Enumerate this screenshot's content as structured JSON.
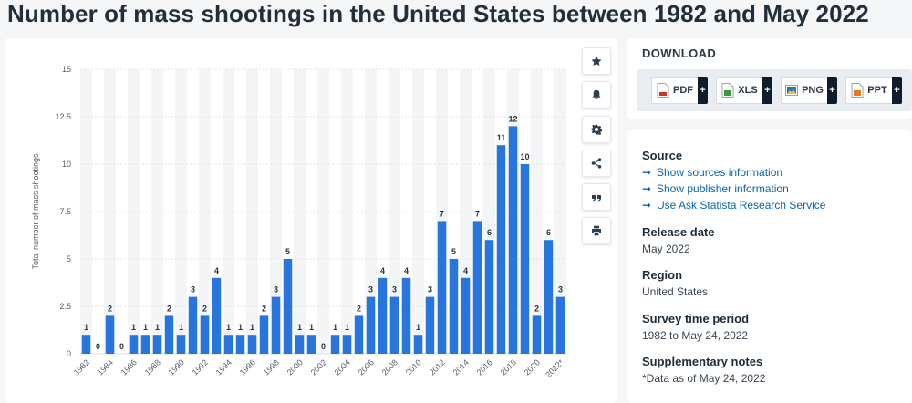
{
  "page": {
    "title": "Number of mass shootings in the United States between 1982 and May 2022"
  },
  "toolbar": {
    "buttons": [
      {
        "name": "star-icon"
      },
      {
        "name": "bell-icon"
      },
      {
        "name": "gear-icon"
      },
      {
        "name": "share-icon"
      },
      {
        "name": "quote-icon"
      },
      {
        "name": "print-icon"
      }
    ]
  },
  "download": {
    "heading": "DOWNLOAD",
    "buttons": [
      {
        "label": "PDF",
        "plus": "+",
        "color": "#d9302c"
      },
      {
        "label": "XLS",
        "plus": "+",
        "color": "#3a9a3a"
      },
      {
        "label": "PNG",
        "plus": "+",
        "color": "#2f6fb7"
      },
      {
        "label": "PPT",
        "plus": "+",
        "color": "#e47a1e"
      }
    ]
  },
  "info": {
    "source_heading": "Source",
    "links": [
      {
        "arrow": "➞",
        "label": "Show sources information"
      },
      {
        "arrow": "➞",
        "label": "Show publisher information"
      },
      {
        "arrow": "➞",
        "label": "Use Ask Statista Research Service"
      }
    ],
    "release_heading": "Release date",
    "release_value": "May 2022",
    "region_heading": "Region",
    "region_value": "United States",
    "period_heading": "Survey time period",
    "period_value": "1982 to May 24, 2022",
    "notes_heading": "Supplementary notes",
    "notes_value": "*Data as of May 24, 2022"
  },
  "chart_data": {
    "type": "bar",
    "ylabel": "Total number of mass shootings",
    "ylim": [
      0,
      15
    ],
    "yticks": [
      "0",
      "2.5",
      "5",
      "7.5",
      "10",
      "12.5",
      "15"
    ],
    "categories": [
      "1982",
      "1983",
      "1984",
      "1985",
      "1986",
      "1987",
      "1988",
      "1989",
      "1990",
      "1991",
      "1992",
      "1993",
      "1994",
      "1995",
      "1996",
      "1997",
      "1998",
      "1999",
      "2000",
      "2001",
      "2002",
      "2003",
      "2004",
      "2005",
      "2006",
      "2007",
      "2008",
      "2009",
      "2010",
      "2011",
      "2012",
      "2013",
      "2014",
      "2015",
      "2016",
      "2017",
      "2018",
      "2019",
      "2020",
      "2021",
      "2022*"
    ],
    "xtick_labels": [
      "1982",
      "1984",
      "1986",
      "1988",
      "1990",
      "1992",
      "1994",
      "1996",
      "1998",
      "2000",
      "2002",
      "2004",
      "2006",
      "2008",
      "2010",
      "2012",
      "2014",
      "2016",
      "2018",
      "2020",
      "2022*"
    ],
    "values": [
      1,
      0,
      2,
      0,
      1,
      1,
      1,
      2,
      1,
      3,
      2,
      4,
      1,
      1,
      1,
      2,
      3,
      5,
      1,
      1,
      0,
      1,
      1,
      2,
      3,
      4,
      3,
      4,
      1,
      3,
      7,
      5,
      4,
      7,
      6,
      11,
      12,
      10,
      2,
      6,
      3
    ],
    "grid": true,
    "bar_color": "#2876dd"
  }
}
